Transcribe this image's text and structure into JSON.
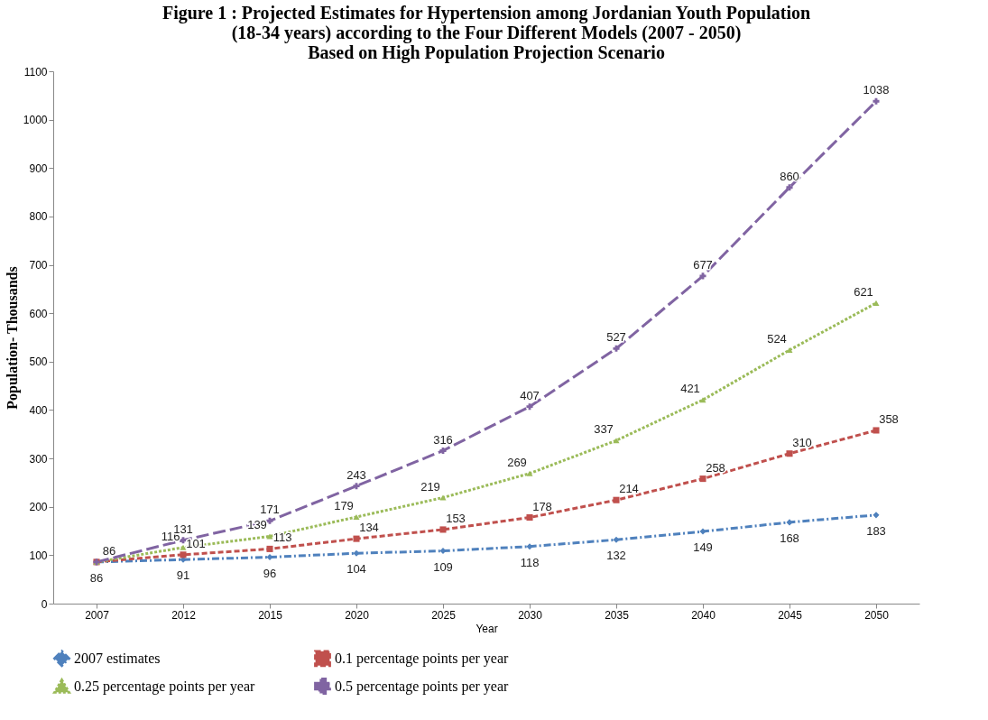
{
  "chart_data": {
    "type": "line",
    "title": "Figure 1 : Projected Estimates for Hypertension among Jordanian Youth Population\n(18-34 years) according to the Four Different Models (2007 - 2050)\nBased on High Population Projection Scenario",
    "xlabel": "Year",
    "ylabel": "Population- Thousands",
    "categories": [
      "2007",
      "2012",
      "2015",
      "2020",
      "2025",
      "2030",
      "2035",
      "2040",
      "2045",
      "2050"
    ],
    "series": [
      {
        "name": "2007 estimates",
        "color": "#4f81bd",
        "marker": "diamond",
        "line_style": "dashdot",
        "values": [
          86,
          91,
          96,
          104,
          109,
          118,
          132,
          149,
          168,
          183
        ]
      },
      {
        "name": "0.1 percentage points per year",
        "color": "#c0504d",
        "marker": "square",
        "line_style": "dashed",
        "values": [
          86,
          101,
          113,
          134,
          153,
          178,
          214,
          258,
          310,
          358
        ]
      },
      {
        "name": "0.25 percentage points per year",
        "color": "#9bbb59",
        "marker": "triangle",
        "line_style": "dotted",
        "values": [
          86,
          116,
          139,
          179,
          219,
          269,
          337,
          421,
          524,
          621
        ],
        "value_labels": [
          null,
          "116",
          "139",
          "179",
          "219",
          "269",
          "337",
          "421",
          "524",
          "621"
        ]
      },
      {
        "name": "0.5 percentage points per year",
        "color": "#8064a2",
        "marker": "cross",
        "line_style": "longdash",
        "values": [
          86,
          131,
          171,
          243,
          316,
          407,
          527,
          677,
          860,
          1038
        ],
        "value_labels": [
          null,
          "131",
          "171",
          "243",
          "316",
          "407",
          "527",
          "677",
          "860",
          "1038"
        ]
      }
    ],
    "ylim": [
      0,
      1100
    ],
    "yticks": [
      0,
      100,
      200,
      300,
      400,
      500,
      600,
      700,
      800,
      900,
      1000,
      1100
    ],
    "grid": false,
    "legend": "bottom",
    "data_labels": true
  }
}
